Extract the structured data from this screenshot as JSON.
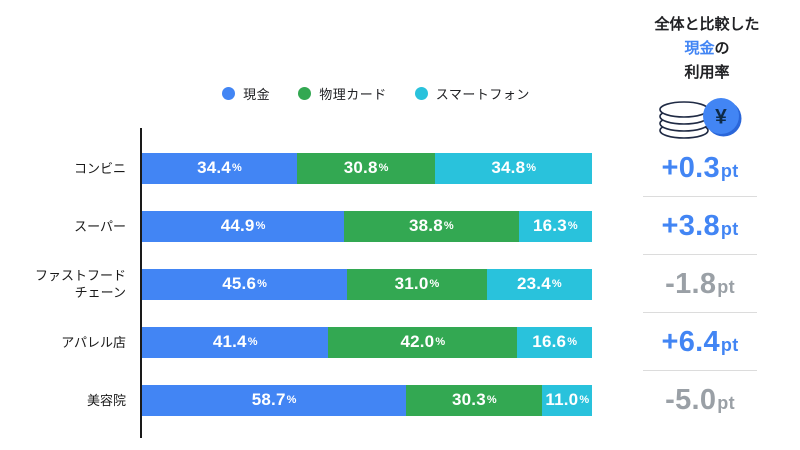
{
  "legend": [
    {
      "label": "現金",
      "color": "#4285F4"
    },
    {
      "label": "物理カード",
      "color": "#33A852"
    },
    {
      "label": "スマートフォン",
      "color": "#29C2DC"
    }
  ],
  "right_panel": {
    "title_line1": "全体と比較した",
    "title_highlight": "現金",
    "title_suffix": "の",
    "title_line3": "利用率",
    "icon": "yen-coins-icon",
    "currency_symbol": "¥",
    "highlight_color": "#4285F4",
    "positive_color": "#4285F4",
    "negative_color": "#9AA0A6",
    "unit": "pt"
  },
  "chart_data": {
    "type": "bar",
    "stacked": true,
    "orientation": "horizontal",
    "unit": "%",
    "xlim": [
      0,
      100
    ],
    "grid": false,
    "legend_position": "top",
    "categories": [
      "コンビニ",
      "スーパー",
      "ファストフード\nチェーン",
      "アパレル店",
      "美容院"
    ],
    "series": [
      {
        "name": "現金",
        "color": "#4285F4",
        "values": [
          34.4,
          44.9,
          45.6,
          41.4,
          58.7
        ]
      },
      {
        "name": "物理カード",
        "color": "#33A852",
        "values": [
          30.8,
          38.8,
          31.0,
          42.0,
          30.3
        ]
      },
      {
        "name": "スマートフォン",
        "color": "#29C2DC",
        "values": [
          34.8,
          16.3,
          23.4,
          16.6,
          11.0
        ]
      }
    ],
    "comparison": {
      "title": "全体と比較した現金の利用率",
      "unit": "pt",
      "values": [
        "+0.3",
        "+3.8",
        "-1.8",
        "+6.4",
        "-5.0"
      ]
    }
  }
}
